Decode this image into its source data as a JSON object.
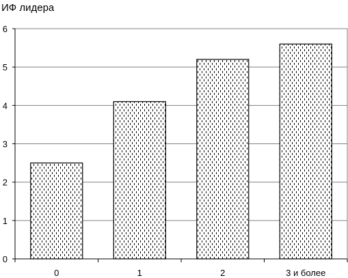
{
  "chart_data": {
    "type": "bar",
    "ylabel": "ИФ лидера",
    "xlabel": "",
    "categories": [
      "0",
      "1",
      "2",
      "3 и более"
    ],
    "values": [
      2.5,
      4.1,
      5.2,
      5.6
    ],
    "ylim": [
      0,
      6
    ],
    "yticks": [
      "0",
      "1",
      "2",
      "3",
      "4",
      "5",
      "6"
    ],
    "grid": true,
    "legend": "none",
    "colors": {
      "bar_fill": "#ffffff",
      "bar_pattern": "#000000",
      "bar_stroke": "#000000",
      "grid": "#808080",
      "axis": "#000000",
      "text": "#000000"
    }
  }
}
